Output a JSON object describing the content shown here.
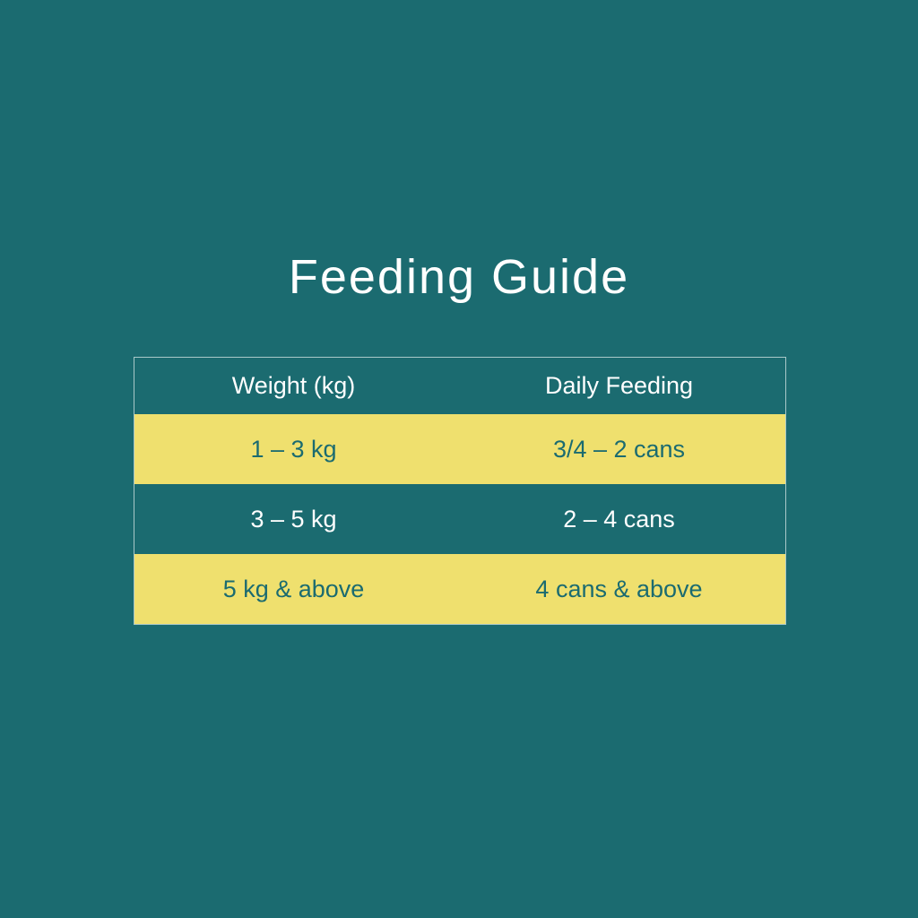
{
  "title": "Feeding Guide",
  "table": {
    "headers": [
      "Weight (kg)",
      "Daily Feeding"
    ],
    "rows": [
      [
        "1 – 3 kg",
        "3/4 – 2 cans"
      ],
      [
        "3 – 5 kg",
        "2 – 4 cans"
      ],
      [
        "5 kg & above",
        "4 cans & above"
      ]
    ]
  },
  "colors": {
    "background": "#1b6b70",
    "highlight": "#efe06e"
  }
}
